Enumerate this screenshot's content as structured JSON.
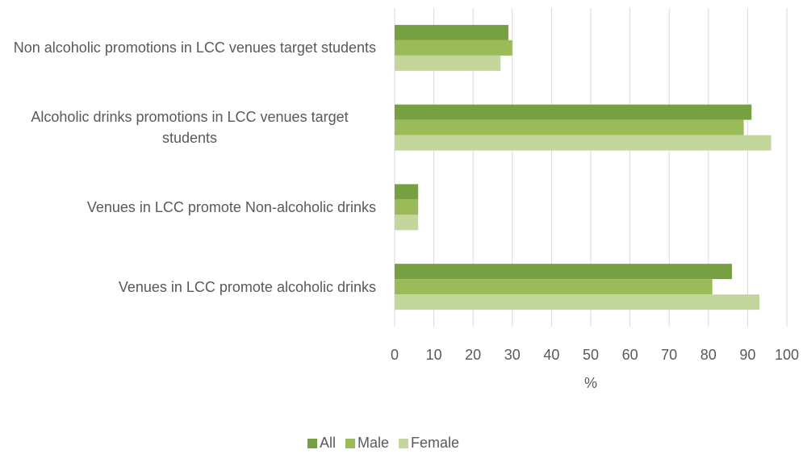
{
  "chart_data": {
    "type": "hbar",
    "categories": [
      "Non alcoholic promotions in LCC venues target students",
      "Alcoholic drinks promotions in LCC venues target students",
      "Venues in LCC promote Non-alcoholic drinks",
      "Venues in LCC promote alcoholic drinks"
    ],
    "series": [
      {
        "name": "All",
        "color": "#77a043",
        "values": [
          29,
          91,
          6,
          86
        ]
      },
      {
        "name": "Male",
        "color": "#9bbb59",
        "values": [
          30,
          89,
          6,
          81
        ]
      },
      {
        "name": "Female",
        "color": "#c3d69b",
        "values": [
          27,
          96,
          6,
          93
        ]
      }
    ],
    "x_label": "%",
    "xlim": [
      0,
      100
    ],
    "xticks": [
      0,
      10,
      20,
      30,
      40,
      50,
      60,
      70,
      80,
      90,
      100
    ],
    "grid": true,
    "legend": "bottom"
  }
}
